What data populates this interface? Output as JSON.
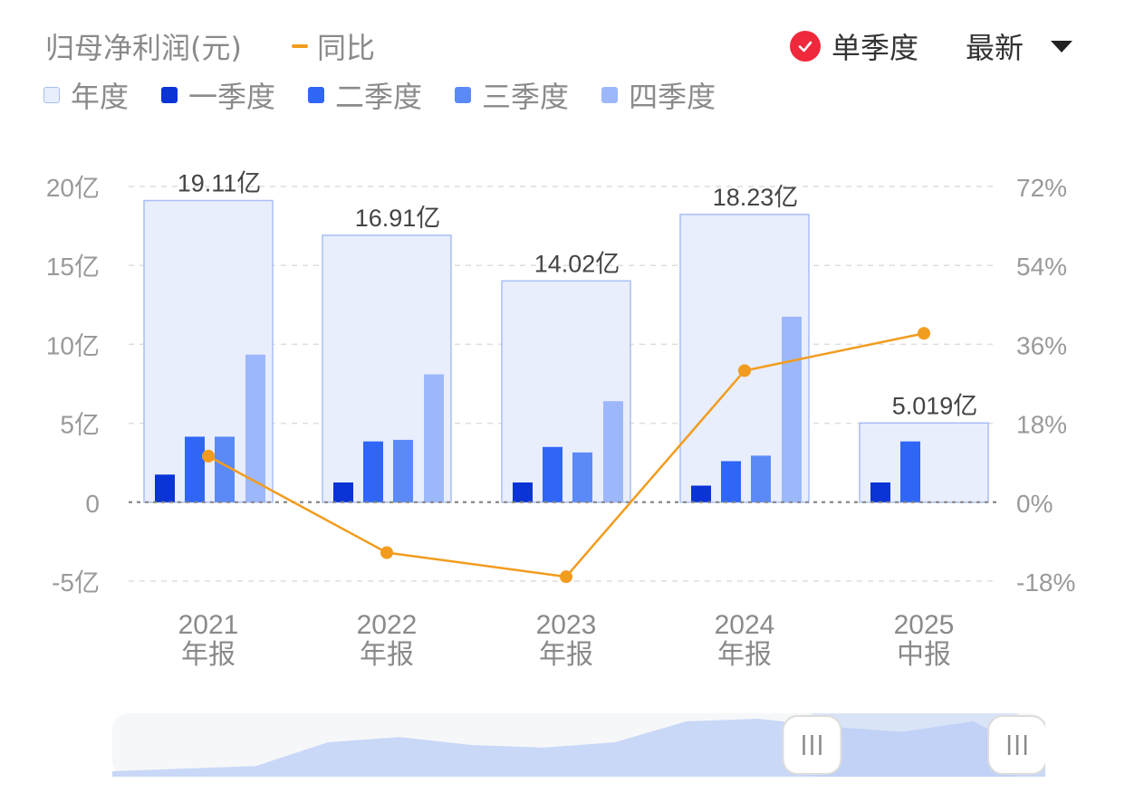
{
  "header": {
    "title": "归母净利润(元)",
    "yoy_label": "同比",
    "single_quarter_label": "单季度",
    "latest_label": "最新"
  },
  "legend": {
    "items": [
      {
        "label": "年度",
        "color": "#e8eefc"
      },
      {
        "label": "一季度",
        "color": "#0a34d6"
      },
      {
        "label": "二季度",
        "color": "#2f66f6"
      },
      {
        "label": "三季度",
        "color": "#5b8af7"
      },
      {
        "label": "四季度",
        "color": "#9db8fa"
      }
    ]
  },
  "colors": {
    "annual_fill": "#e8eefc",
    "annual_border": "#a9bff3",
    "yoy_line": "#f29c1f",
    "grid": "#dddddd",
    "axis_text": "#9a9a9a",
    "check_red": "#f0283c"
  },
  "chart_data": {
    "type": "bar",
    "categories": [
      "2021\n年报",
      "2022\n年报",
      "2023\n年报",
      "2024\n年报",
      "2025\n中报"
    ],
    "category_lines": [
      [
        "2021",
        "年报"
      ],
      [
        "2022",
        "年报"
      ],
      [
        "2023",
        "年报"
      ],
      [
        "2024",
        "年报"
      ],
      [
        "2025",
        "中报"
      ]
    ],
    "series": [
      {
        "name": "年度",
        "values": [
          19.11,
          16.91,
          14.02,
          18.23,
          5.019
        ],
        "labels": [
          "19.11亿",
          "16.91亿",
          "14.02亿",
          "18.23亿",
          "5.019亿"
        ]
      },
      {
        "name": "一季度",
        "values": [
          1.75,
          1.25,
          1.25,
          1.05,
          1.25
        ]
      },
      {
        "name": "二季度",
        "values": [
          4.15,
          3.85,
          3.5,
          2.6,
          3.85
        ]
      },
      {
        "name": "三季度",
        "values": [
          4.15,
          3.95,
          3.15,
          2.95,
          null
        ]
      },
      {
        "name": "四季度",
        "values": [
          9.35,
          8.1,
          6.4,
          11.75,
          null
        ]
      },
      {
        "name": "同比",
        "axis": "right",
        "values": [
          10.5,
          -11.5,
          -17,
          30,
          38.5
        ]
      }
    ],
    "y_left": {
      "min": -5,
      "max": 20,
      "ticks": [
        20,
        15,
        10,
        5,
        0,
        -5
      ],
      "tick_labels": [
        "20亿",
        "15亿",
        "10亿",
        "5亿",
        "0",
        "-5亿"
      ]
    },
    "y_right": {
      "min": -18,
      "max": 72,
      "ticks": [
        72,
        54,
        36,
        18,
        0,
        -18
      ],
      "tick_labels": [
        "72%",
        "54%",
        "36%",
        "18%",
        "0%",
        "-18%"
      ]
    },
    "grid": true,
    "legend_position": "top-left"
  },
  "navigator": {
    "overview_values": [
      0.0,
      0.05,
      0.1,
      0.55,
      0.65,
      0.5,
      0.45,
      0.55,
      0.95,
      1.0,
      0.85,
      0.75,
      0.95,
      0.2
    ],
    "range_start": 0.75,
    "range_end": 0.97
  }
}
